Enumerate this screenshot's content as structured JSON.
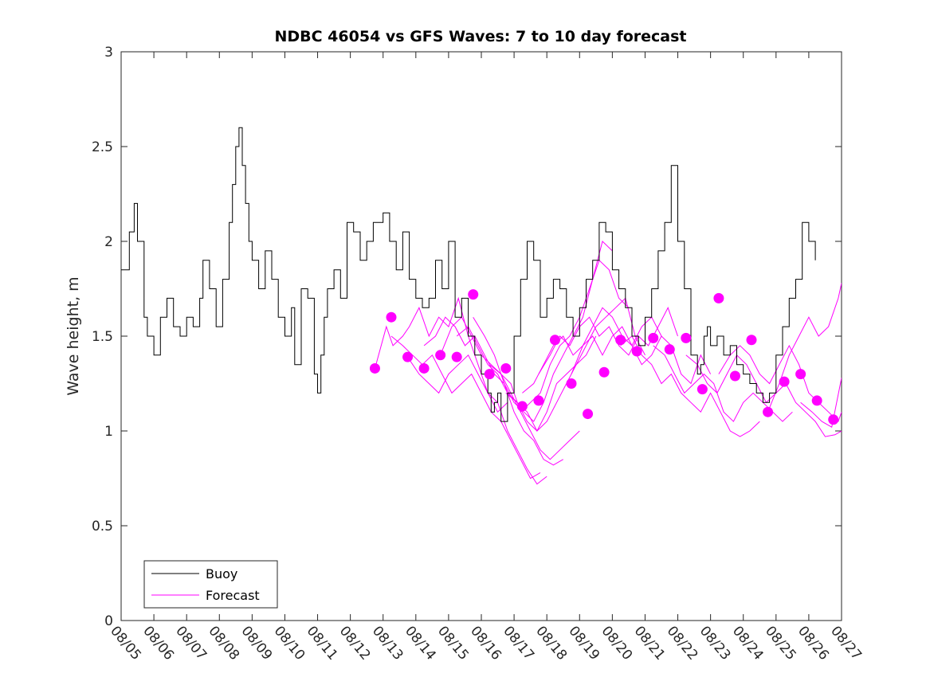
{
  "chart_data": {
    "type": "line",
    "title": "NDBC 46054 vs GFS Waves: 7 to 10 day forecast",
    "xlabel": "",
    "ylabel": "Wave height, m",
    "ylim": [
      0,
      3
    ],
    "yticks": [
      0,
      0.5,
      1,
      1.5,
      2,
      2.5,
      3
    ],
    "ytick_labels": [
      "0",
      "0.5",
      "1",
      "1.5",
      "2",
      "2.5",
      "3"
    ],
    "xlim_days": [
      0,
      22
    ],
    "xtick_labels": [
      "08/05",
      "08/06",
      "08/07",
      "08/08",
      "08/09",
      "08/10",
      "08/11",
      "08/12",
      "08/13",
      "08/14",
      "08/15",
      "08/16",
      "08/17",
      "08/18",
      "08/19",
      "08/20",
      "08/21",
      "08/22",
      "08/23",
      "08/24",
      "08/25",
      "08/26",
      "08/27"
    ],
    "x_unit": "days since 08/05",
    "legend": {
      "placement": "bottom-left",
      "entries": [
        {
          "label": "Buoy",
          "color": "#000000"
        },
        {
          "label": "Forecast",
          "color": "#ff00ff"
        }
      ]
    },
    "colors": {
      "buoy": "#000000",
      "forecast": "#ff00ff"
    },
    "buoy": {
      "name": "Buoy",
      "x": [
        0.0,
        0.25,
        0.4,
        0.5,
        0.7,
        0.8,
        1.0,
        1.2,
        1.4,
        1.6,
        1.8,
        2.0,
        2.2,
        2.4,
        2.5,
        2.7,
        2.9,
        3.1,
        3.3,
        3.4,
        3.5,
        3.6,
        3.7,
        3.8,
        3.9,
        4.0,
        4.2,
        4.4,
        4.6,
        4.8,
        5.0,
        5.2,
        5.3,
        5.5,
        5.7,
        5.9,
        6.0,
        6.1,
        6.2,
        6.3,
        6.5,
        6.7,
        6.9,
        7.1,
        7.3,
        7.5,
        7.7,
        8.0,
        8.2,
        8.4,
        8.6,
        8.8,
        9.0,
        9.2,
        9.4,
        9.6,
        9.8,
        10.0,
        10.2,
        10.4,
        10.6,
        10.8,
        11.0,
        11.2,
        11.3,
        11.4,
        11.5,
        11.6,
        11.8,
        12.0,
        12.2,
        12.4,
        12.6,
        12.8,
        13.0,
        13.2,
        13.4,
        13.6,
        13.8,
        14.0,
        14.2,
        14.4,
        14.6,
        14.8,
        15.0,
        15.2,
        15.4,
        15.6,
        15.8,
        16.0,
        16.2,
        16.4,
        16.6,
        16.8,
        17.0,
        17.2,
        17.4,
        17.6,
        17.7,
        17.8,
        17.9,
        18.0,
        18.2,
        18.4,
        18.6,
        18.8,
        19.0,
        19.2,
        19.4,
        19.6,
        19.8,
        20.0,
        20.2,
        20.4,
        20.6,
        20.8,
        21.0,
        21.2
      ],
      "y": [
        1.85,
        2.05,
        2.2,
        2.0,
        1.6,
        1.5,
        1.4,
        1.6,
        1.7,
        1.55,
        1.5,
        1.6,
        1.55,
        1.7,
        1.9,
        1.75,
        1.55,
        1.8,
        2.1,
        2.3,
        2.5,
        2.6,
        2.4,
        2.2,
        2.0,
        1.9,
        1.75,
        1.95,
        1.8,
        1.6,
        1.5,
        1.65,
        1.35,
        1.75,
        1.7,
        1.3,
        1.2,
        1.4,
        1.6,
        1.75,
        1.85,
        1.7,
        2.1,
        2.05,
        1.9,
        2.0,
        2.1,
        2.15,
        2.0,
        1.85,
        2.05,
        1.8,
        1.7,
        1.65,
        1.7,
        1.9,
        1.75,
        2.0,
        1.6,
        1.7,
        1.5,
        1.4,
        1.3,
        1.2,
        1.1,
        1.15,
        1.2,
        1.05,
        1.2,
        1.5,
        1.8,
        2.0,
        1.9,
        1.6,
        1.7,
        1.8,
        1.75,
        1.6,
        1.5,
        1.65,
        1.8,
        1.9,
        2.1,
        2.05,
        1.85,
        1.75,
        1.65,
        1.5,
        1.45,
        1.6,
        1.75,
        1.95,
        2.1,
        2.4,
        2.0,
        1.75,
        1.4,
        1.3,
        1.35,
        1.5,
        1.55,
        1.45,
        1.5,
        1.4,
        1.45,
        1.35,
        1.3,
        1.25,
        1.2,
        1.15,
        1.2,
        1.4,
        1.55,
        1.7,
        1.8,
        2.1,
        2.0,
        1.9
      ]
    },
    "forecast_points": {
      "name": "Forecast",
      "x": [
        7.75,
        8.25,
        8.75,
        9.25,
        9.75,
        10.25,
        10.75,
        11.25,
        11.75,
        12.25,
        12.75,
        13.25,
        13.75,
        14.25,
        14.75,
        15.25,
        15.75,
        16.25,
        16.75,
        17.25,
        17.75,
        18.25,
        18.75,
        19.25,
        19.75,
        20.25,
        20.75,
        21.25,
        21.75
      ],
      "y": [
        1.33,
        1.6,
        1.39,
        1.33,
        1.4,
        1.39,
        1.72,
        1.3,
        1.33,
        1.13,
        1.16,
        1.48,
        1.25,
        1.09,
        1.31,
        1.48,
        1.42,
        1.49,
        1.43,
        1.49,
        1.22,
        1.7,
        1.29,
        1.48,
        1.1,
        1.26,
        1.3,
        1.16,
        1.06
      ]
    },
    "forecast_runs": [
      {
        "name": "run-1",
        "x": [
          7.75,
          8.1,
          8.3,
          8.6,
          8.8,
          9.1,
          9.4,
          9.7,
          10.0,
          10.3,
          10.6,
          10.9,
          11.2,
          11.5,
          11.8
        ],
        "y": [
          1.33,
          1.55,
          1.45,
          1.5,
          1.55,
          1.65,
          1.5,
          1.6,
          1.55,
          1.7,
          1.5,
          1.35,
          1.2,
          1.1,
          1.15
        ]
      },
      {
        "name": "run-2",
        "x": [
          8.25,
          8.6,
          8.9,
          9.2,
          9.5,
          9.8,
          10.1,
          10.4,
          10.7,
          11.0,
          11.3,
          11.6,
          11.9,
          12.2,
          12.5,
          12.8
        ],
        "y": [
          1.5,
          1.45,
          1.4,
          1.35,
          1.4,
          1.3,
          1.2,
          1.25,
          1.3,
          1.2,
          1.1,
          1.05,
          0.95,
          0.85,
          0.75,
          0.78
        ]
      },
      {
        "name": "run-3",
        "x": [
          8.75,
          9.1,
          9.4,
          9.7,
          10.0,
          10.3,
          10.6,
          10.9,
          11.2,
          11.5,
          11.8,
          12.1,
          12.4,
          12.7,
          13.0
        ],
        "y": [
          1.39,
          1.3,
          1.25,
          1.2,
          1.3,
          1.35,
          1.4,
          1.3,
          1.2,
          1.15,
          1.0,
          0.9,
          0.8,
          0.72,
          0.76
        ]
      },
      {
        "name": "run-4",
        "x": [
          9.25,
          9.6,
          9.9,
          10.2,
          10.5,
          10.8,
          11.1,
          11.4,
          11.7,
          12.0,
          12.3,
          12.6,
          12.9,
          13.2,
          13.5
        ],
        "y": [
          1.45,
          1.5,
          1.6,
          1.55,
          1.45,
          1.5,
          1.4,
          1.3,
          1.25,
          1.1,
          1.0,
          0.95,
          0.85,
          0.82,
          0.85
        ]
      },
      {
        "name": "run-5",
        "x": [
          9.75,
          10.1,
          10.4,
          10.7,
          11.0,
          11.3,
          11.6,
          11.9,
          12.2,
          12.5,
          12.8,
          13.1,
          13.4,
          13.7,
          14.0
        ],
        "y": [
          1.4,
          1.55,
          1.6,
          1.5,
          1.4,
          1.35,
          1.3,
          1.25,
          1.1,
          1.0,
          0.9,
          0.85,
          0.9,
          0.95,
          1.0
        ]
      },
      {
        "name": "run-6",
        "x": [
          10.25,
          10.6,
          10.9,
          11.2,
          11.5,
          11.8,
          12.1,
          12.4,
          12.7,
          13.0,
          13.3,
          13.6,
          13.9,
          14.2,
          14.5
        ],
        "y": [
          1.5,
          1.55,
          1.45,
          1.35,
          1.3,
          1.2,
          1.15,
          1.05,
          1.0,
          1.05,
          1.15,
          1.25,
          1.35,
          1.4,
          1.5
        ]
      },
      {
        "name": "run-7",
        "x": [
          10.75,
          11.1,
          11.4,
          11.7,
          12.0,
          12.3,
          12.6,
          12.9,
          13.2,
          13.5,
          13.8,
          14.1,
          14.4,
          14.7,
          15.0
        ],
        "y": [
          1.6,
          1.5,
          1.4,
          1.25,
          1.15,
          1.1,
          1.05,
          1.15,
          1.3,
          1.4,
          1.5,
          1.6,
          1.8,
          2.0,
          1.95
        ]
      },
      {
        "name": "run-8",
        "x": [
          11.25,
          11.6,
          11.9,
          12.2,
          12.5,
          12.8,
          13.1,
          13.4,
          13.7,
          14.0,
          14.3,
          14.6,
          14.9,
          15.2,
          15.5
        ],
        "y": [
          1.35,
          1.3,
          1.2,
          1.1,
          1.15,
          1.2,
          1.35,
          1.45,
          1.5,
          1.6,
          1.75,
          1.9,
          1.85,
          1.7,
          1.65
        ]
      },
      {
        "name": "run-9",
        "x": [
          11.75,
          12.1,
          12.4,
          12.7,
          13.0,
          13.3,
          13.6,
          13.9,
          14.2,
          14.5,
          14.8,
          15.1,
          15.4,
          15.7,
          16.0
        ],
        "y": [
          1.2,
          1.15,
          1.1,
          1.0,
          1.1,
          1.25,
          1.3,
          1.35,
          1.45,
          1.55,
          1.6,
          1.65,
          1.7,
          1.5,
          1.4
        ]
      },
      {
        "name": "run-10",
        "x": [
          12.25,
          12.6,
          12.9,
          13.2,
          13.5,
          13.8,
          14.1,
          14.4,
          14.7,
          15.0,
          15.3,
          15.6,
          15.9,
          16.2,
          16.5
        ],
        "y": [
          1.2,
          1.25,
          1.35,
          1.45,
          1.5,
          1.4,
          1.45,
          1.55,
          1.65,
          1.6,
          1.5,
          1.45,
          1.55,
          1.6,
          1.5
        ]
      },
      {
        "name": "run-11",
        "x": [
          12.75,
          13.1,
          13.4,
          13.7,
          14.0,
          14.3,
          14.6,
          14.9,
          15.2,
          15.5,
          15.8,
          16.1,
          16.4,
          16.7,
          17.0
        ],
        "y": [
          1.3,
          1.4,
          1.5,
          1.45,
          1.55,
          1.6,
          1.5,
          1.55,
          1.45,
          1.4,
          1.5,
          1.45,
          1.55,
          1.65,
          1.5
        ]
      },
      {
        "name": "run-12",
        "x": [
          13.75,
          14.1,
          14.4,
          14.7,
          15.0,
          15.3,
          15.6,
          15.9,
          16.2,
          16.5,
          16.8,
          17.1,
          17.4,
          17.7,
          18.0
        ],
        "y": [
          1.3,
          1.45,
          1.5,
          1.4,
          1.5,
          1.55,
          1.45,
          1.35,
          1.4,
          1.5,
          1.45,
          1.3,
          1.25,
          1.4,
          1.3
        ]
      },
      {
        "name": "run-13",
        "x": [
          15.25,
          15.6,
          15.9,
          16.2,
          16.5,
          16.8,
          17.1,
          17.4,
          17.7,
          18.0,
          18.3,
          18.6,
          18.9,
          19.2,
          19.5
        ],
        "y": [
          1.45,
          1.5,
          1.4,
          1.35,
          1.25,
          1.3,
          1.2,
          1.15,
          1.1,
          1.2,
          1.1,
          1.0,
          0.97,
          1.0,
          1.05
        ]
      },
      {
        "name": "run-14",
        "x": [
          16.25,
          16.6,
          16.9,
          17.2,
          17.5,
          17.8,
          18.1,
          18.4,
          18.7,
          19.0,
          19.3,
          19.6,
          19.9,
          20.2,
          20.5
        ],
        "y": [
          1.45,
          1.4,
          1.3,
          1.2,
          1.25,
          1.3,
          1.25,
          1.1,
          1.05,
          1.15,
          1.2,
          1.15,
          1.1,
          1.05,
          1.1
        ]
      },
      {
        "name": "run-15",
        "x": [
          17.25,
          17.6,
          17.9,
          18.2,
          18.5,
          18.8,
          19.1,
          19.4,
          19.7,
          20.0,
          20.3,
          20.6,
          20.9,
          21.2,
          21.5,
          21.8,
          22.0
        ],
        "y": [
          1.4,
          1.35,
          1.25,
          1.2,
          1.3,
          1.4,
          1.35,
          1.25,
          1.15,
          1.2,
          1.25,
          1.15,
          1.1,
          1.05,
          0.97,
          0.98,
          1.0
        ]
      },
      {
        "name": "run-16",
        "x": [
          18.25,
          18.6,
          18.9,
          19.2,
          19.5,
          19.8,
          20.1,
          20.4,
          20.7,
          21.0,
          21.3,
          21.6,
          21.9,
          22.0
        ],
        "y": [
          1.3,
          1.4,
          1.45,
          1.4,
          1.3,
          1.25,
          1.35,
          1.45,
          1.35,
          1.2,
          1.15,
          1.1,
          1.05,
          1.1
        ]
      },
      {
        "name": "run-17",
        "x": [
          19.75,
          20.1,
          20.4,
          20.7,
          21.0,
          21.3,
          21.6,
          21.9,
          22.0
        ],
        "y": [
          1.1,
          1.25,
          1.4,
          1.5,
          1.6,
          1.5,
          1.55,
          1.7,
          1.78
        ]
      },
      {
        "name": "run-18",
        "x": [
          20.75,
          21.1,
          21.4,
          21.7,
          22.0
        ],
        "y": [
          1.15,
          1.1,
          1.05,
          1.02,
          1.28
        ]
      }
    ]
  }
}
